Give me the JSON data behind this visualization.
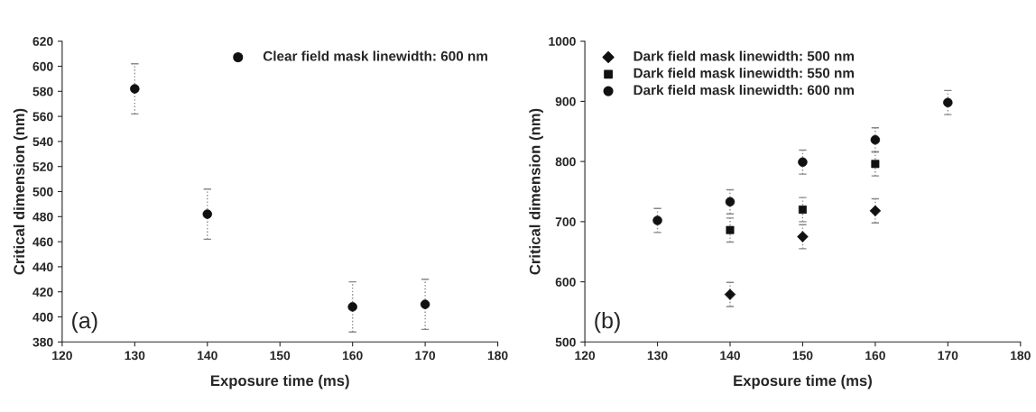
{
  "chart_data": [
    {
      "type": "scatter",
      "xlabel": "Exposure time (ms)",
      "ylabel": "Critical dimension (nm)",
      "xlim": [
        120,
        180
      ],
      "xticks": [
        120,
        130,
        140,
        150,
        160,
        170,
        180
      ],
      "ylim": [
        380,
        620
      ],
      "yticks": [
        380,
        400,
        420,
        440,
        460,
        480,
        500,
        520,
        540,
        560,
        580,
        600,
        620
      ],
      "legend": "top right",
      "annotations": [
        "(a)"
      ],
      "series": [
        {
          "name": "Clear field mask linewidth: 600 nm",
          "color": "#111111",
          "marker": "circle",
          "x": [
            130,
            140,
            160,
            170
          ],
          "values": [
            582,
            482,
            408,
            410
          ],
          "errors": [
            20,
            20,
            20,
            20
          ]
        }
      ]
    },
    {
      "type": "scatter",
      "xlabel": "Exposure time (ms)",
      "ylabel": "Critical dimension (nm)",
      "xlim": [
        120,
        180
      ],
      "xticks": [
        120,
        130,
        140,
        150,
        160,
        170,
        180
      ],
      "ylim": [
        500,
        1000
      ],
      "yticks": [
        500,
        600,
        700,
        800,
        900,
        1000
      ],
      "legend": "top left",
      "annotations": [
        "(b)"
      ],
      "series": [
        {
          "name": "Dark field mask linewidth: 500 nm",
          "color": "#111111",
          "marker": "diamond",
          "x": [
            140,
            150,
            160
          ],
          "values": [
            579,
            675,
            718
          ],
          "errors": [
            20,
            20,
            20
          ]
        },
        {
          "name": "Dark field mask linewidth: 550 nm",
          "color": "#111111",
          "marker": "square",
          "x": [
            140,
            150,
            160
          ],
          "values": [
            686,
            720,
            796
          ],
          "errors": [
            20,
            20,
            20
          ]
        },
        {
          "name": "Dark field mask linewidth: 600 nm",
          "color": "#111111",
          "marker": "circle",
          "x": [
            130,
            140,
            150,
            160,
            170
          ],
          "values": [
            702,
            733,
            799,
            836,
            898
          ],
          "errors": [
            20,
            20,
            20,
            20,
            20
          ]
        }
      ]
    }
  ]
}
